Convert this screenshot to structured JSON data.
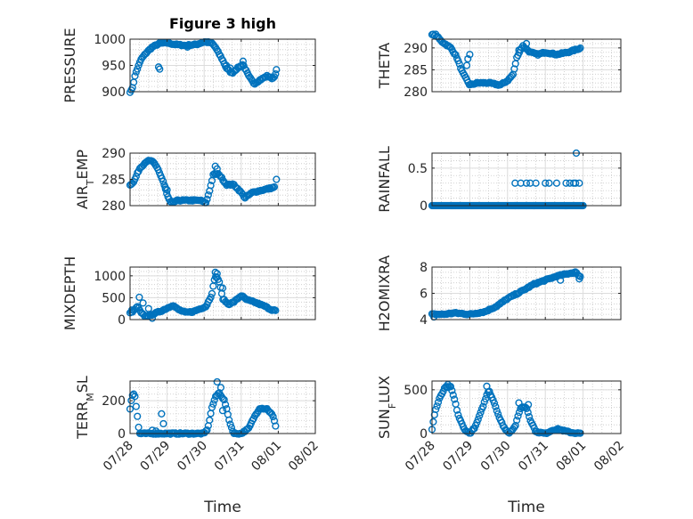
{
  "chart_data": {
    "type": "scatter",
    "title": "Figure 3 high",
    "x_range": [
      "07/28",
      "08/02"
    ],
    "x_tick_labels": [
      "07/28",
      "07/29",
      "07/30",
      "07/31",
      "08/01",
      "08/02"
    ],
    "x_label": "Time",
    "marker": "open circle",
    "marker_color": "#0072bd",
    "grid": true,
    "minor_grid": true,
    "layout": "4 rows x 2 columns",
    "panels": [
      {
        "id": "pressure",
        "ylabel": "PRESSURE",
        "ylim": [
          900,
          1000
        ],
        "yticks": [
          900,
          950,
          1000
        ],
        "show_title": true,
        "show_xticks": false,
        "keypoints": [
          [
            0.0,
            900
          ],
          [
            0.05,
            903
          ],
          [
            0.15,
            935
          ],
          [
            0.3,
            962
          ],
          [
            0.45,
            975
          ],
          [
            0.6,
            985
          ],
          [
            0.8,
            992
          ],
          [
            1.0,
            993
          ],
          [
            1.2,
            990
          ],
          [
            1.5,
            988
          ],
          [
            1.8,
            990
          ],
          [
            2.0,
            995
          ],
          [
            2.2,
            993
          ],
          [
            2.3,
            985
          ],
          [
            2.5,
            960
          ],
          [
            2.6,
            945
          ],
          [
            2.75,
            935
          ],
          [
            2.9,
            945
          ],
          [
            3.05,
            952
          ],
          [
            3.2,
            930
          ],
          [
            3.35,
            915
          ],
          [
            3.5,
            922
          ],
          [
            3.7,
            930
          ],
          [
            3.85,
            925
          ],
          [
            3.95,
            935
          ]
        ],
        "outliers": [
          [
            0.77,
            947
          ],
          [
            0.8,
            943
          ],
          [
            2.6,
            950
          ],
          [
            2.7,
            945
          ],
          [
            3.05,
            958
          ],
          [
            3.95,
            942
          ],
          [
            1.55,
            985
          ]
        ]
      },
      {
        "id": "theta",
        "ylabel": "THETA",
        "ylim": [
          280,
          292
        ],
        "yticks": [
          280,
          285,
          290
        ],
        "show_xticks": false,
        "keypoints": [
          [
            0.0,
            293
          ],
          [
            0.1,
            293
          ],
          [
            0.25,
            291.5
          ],
          [
            0.5,
            290
          ],
          [
            0.65,
            288
          ],
          [
            0.8,
            284.5
          ],
          [
            0.9,
            283
          ],
          [
            1.0,
            281.5
          ],
          [
            1.2,
            282
          ],
          [
            1.5,
            282
          ],
          [
            1.8,
            281.5
          ],
          [
            2.0,
            282.5
          ],
          [
            2.15,
            284
          ],
          [
            2.25,
            288
          ],
          [
            2.4,
            290.5
          ],
          [
            2.6,
            289
          ],
          [
            2.8,
            288.5
          ],
          [
            3.0,
            289
          ],
          [
            3.3,
            288.5
          ],
          [
            3.6,
            289
          ],
          [
            3.95,
            290
          ]
        ],
        "outliers": [
          [
            0.92,
            286
          ],
          [
            0.95,
            287.5
          ],
          [
            1.0,
            288.5
          ],
          [
            2.3,
            289.5
          ],
          [
            2.5,
            291
          ]
        ]
      },
      {
        "id": "air_temp",
        "ylabel": "AIR_TEMP",
        "ylabel_base": "AIR",
        "ylabel_sub": "T",
        "ylabel_rest": "EMP",
        "ylim": [
          280,
          290
        ],
        "yticks": [
          280,
          285,
          290
        ],
        "show_xticks": false,
        "keypoints": [
          [
            0.0,
            284
          ],
          [
            0.1,
            284.5
          ],
          [
            0.25,
            287
          ],
          [
            0.45,
            288.5
          ],
          [
            0.6,
            288.5
          ],
          [
            0.75,
            287
          ],
          [
            0.9,
            284.5
          ],
          [
            1.0,
            282
          ],
          [
            1.1,
            280.5
          ],
          [
            1.3,
            281
          ],
          [
            1.6,
            281
          ],
          [
            1.9,
            281
          ],
          [
            2.05,
            280.5
          ],
          [
            2.15,
            283
          ],
          [
            2.25,
            286
          ],
          [
            2.4,
            286
          ],
          [
            2.6,
            284
          ],
          [
            2.8,
            284
          ],
          [
            3.0,
            282.5
          ],
          [
            3.1,
            281.5
          ],
          [
            3.3,
            282.5
          ],
          [
            3.6,
            283
          ],
          [
            3.9,
            283.5
          ]
        ],
        "outliers": [
          [
            0.95,
            283.5
          ],
          [
            1.0,
            283
          ],
          [
            2.3,
            287.5
          ],
          [
            2.35,
            287
          ],
          [
            3.95,
            285
          ]
        ]
      },
      {
        "id": "rainfall",
        "ylabel": "RAINFALL",
        "ylim": [
          0,
          0.7
        ],
        "yticks": [
          0,
          0.5
        ],
        "show_xticks": false,
        "keypoints": [
          [
            0.0,
            0
          ],
          [
            4.0,
            0
          ]
        ],
        "outliers": [
          [
            2.2,
            0.3
          ],
          [
            2.35,
            0.3
          ],
          [
            2.5,
            0.3
          ],
          [
            2.6,
            0.3
          ],
          [
            2.75,
            0.3
          ],
          [
            3.0,
            0.3
          ],
          [
            3.1,
            0.3
          ],
          [
            3.3,
            0.3
          ],
          [
            3.55,
            0.3
          ],
          [
            3.65,
            0.3
          ],
          [
            3.75,
            0.3
          ],
          [
            3.8,
            0.3
          ],
          [
            3.9,
            0.3
          ],
          [
            3.82,
            0.7
          ],
          [
            2.2,
            0
          ],
          [
            2.5,
            0
          ],
          [
            2.7,
            0
          ]
        ]
      },
      {
        "id": "mixdepth",
        "ylabel": "MIXDEPTH",
        "ylim": [
          0,
          1200
        ],
        "yticks": [
          0,
          500,
          1000
        ],
        "show_xticks": false,
        "keypoints": [
          [
            0.0,
            150
          ],
          [
            0.1,
            200
          ],
          [
            0.2,
            300
          ],
          [
            0.3,
            150
          ],
          [
            0.4,
            80
          ],
          [
            0.55,
            100
          ],
          [
            0.7,
            150
          ],
          [
            0.85,
            200
          ],
          [
            1.0,
            260
          ],
          [
            1.15,
            330
          ],
          [
            1.3,
            230
          ],
          [
            1.5,
            160
          ],
          [
            1.7,
            180
          ],
          [
            1.9,
            250
          ],
          [
            2.05,
            300
          ],
          [
            2.2,
            560
          ],
          [
            2.3,
            1000
          ],
          [
            2.4,
            900
          ],
          [
            2.5,
            480
          ],
          [
            2.65,
            350
          ],
          [
            2.8,
            400
          ],
          [
            3.0,
            550
          ],
          [
            3.15,
            450
          ],
          [
            3.35,
            400
          ],
          [
            3.5,
            350
          ],
          [
            3.65,
            300
          ],
          [
            3.8,
            230
          ],
          [
            3.95,
            200
          ]
        ],
        "outliers": [
          [
            0.25,
            510
          ],
          [
            0.35,
            380
          ],
          [
            0.6,
            30
          ],
          [
            0.5,
            250
          ],
          [
            2.3,
            1080
          ],
          [
            2.35,
            1050
          ],
          [
            2.5,
            720
          ],
          [
            0.05,
            220
          ]
        ]
      },
      {
        "id": "h2omixra",
        "ylabel": "H2OMIXRA",
        "ylim": [
          4,
          8
        ],
        "yticks": [
          4,
          6,
          8
        ],
        "show_xticks": false,
        "keypoints": [
          [
            0.0,
            4.4
          ],
          [
            0.3,
            4.4
          ],
          [
            0.6,
            4.5
          ],
          [
            1.0,
            4.4
          ],
          [
            1.4,
            4.6
          ],
          [
            1.7,
            5.0
          ],
          [
            2.0,
            5.6
          ],
          [
            2.4,
            6.2
          ],
          [
            2.7,
            6.7
          ],
          [
            3.0,
            7.0
          ],
          [
            3.3,
            7.3
          ],
          [
            3.6,
            7.5
          ],
          [
            3.8,
            7.6
          ],
          [
            3.95,
            7.2
          ]
        ],
        "outliers": [
          [
            0.05,
            4.2
          ],
          [
            1.8,
            5.2
          ],
          [
            3.4,
            7.0
          ],
          [
            3.9,
            7.1
          ]
        ]
      },
      {
        "id": "terr_msl",
        "ylabel": "TERR_MSL",
        "ylabel_base": "TERR",
        "ylabel_sub": "M",
        "ylabel_rest": "SL",
        "ylim": [
          0,
          320
        ],
        "yticks": [
          0,
          200
        ],
        "show_xticks": true,
        "keypoints": [
          [
            0.0,
            150
          ],
          [
            0.05,
            230
          ],
          [
            0.12,
            250
          ],
          [
            0.2,
            100
          ],
          [
            0.25,
            0
          ],
          [
            0.5,
            0
          ],
          [
            0.8,
            0
          ],
          [
            1.0,
            0
          ],
          [
            1.5,
            0
          ],
          [
            2.0,
            0
          ],
          [
            2.1,
            30
          ],
          [
            2.2,
            150
          ],
          [
            2.3,
            220
          ],
          [
            2.4,
            250
          ],
          [
            2.55,
            200
          ],
          [
            2.7,
            60
          ],
          [
            2.8,
            0
          ],
          [
            3.0,
            0
          ],
          [
            3.2,
            30
          ],
          [
            3.35,
            100
          ],
          [
            3.5,
            155
          ],
          [
            3.7,
            150
          ],
          [
            3.85,
            110
          ],
          [
            3.95,
            30
          ]
        ],
        "outliers": [
          [
            0.85,
            120
          ],
          [
            0.9,
            60
          ],
          [
            2.35,
            315
          ],
          [
            2.45,
            280
          ],
          [
            2.5,
            140
          ],
          [
            0.6,
            20
          ],
          [
            0.7,
            15
          ]
        ]
      },
      {
        "id": "sun_flux",
        "ylabel": "SUN_FLUX",
        "ylabel_base": "SUN",
        "ylabel_sub": "F",
        "ylabel_rest": "LUX",
        "ylim": [
          0,
          600
        ],
        "yticks": [
          0,
          500
        ],
        "show_xticks": true,
        "keypoints": [
          [
            0.0,
            50
          ],
          [
            0.08,
            250
          ],
          [
            0.2,
            400
          ],
          [
            0.35,
            530
          ],
          [
            0.5,
            530
          ],
          [
            0.6,
            380
          ],
          [
            0.7,
            200
          ],
          [
            0.85,
            50
          ],
          [
            1.0,
            0
          ],
          [
            1.15,
            80
          ],
          [
            1.3,
            250
          ],
          [
            1.5,
            500
          ],
          [
            1.65,
            350
          ],
          [
            1.8,
            160
          ],
          [
            1.95,
            40
          ],
          [
            2.05,
            10
          ],
          [
            2.2,
            80
          ],
          [
            2.35,
            300
          ],
          [
            2.5,
            300
          ],
          [
            2.6,
            160
          ],
          [
            2.75,
            20
          ],
          [
            3.0,
            0
          ],
          [
            3.2,
            40
          ],
          [
            3.35,
            50
          ],
          [
            3.5,
            30
          ],
          [
            3.7,
            10
          ],
          [
            3.95,
            0
          ]
        ],
        "outliers": [
          [
            1.45,
            540
          ],
          [
            1.52,
            480
          ],
          [
            2.3,
            350
          ],
          [
            2.55,
            330
          ],
          [
            0.42,
            560
          ]
        ]
      }
    ]
  }
}
